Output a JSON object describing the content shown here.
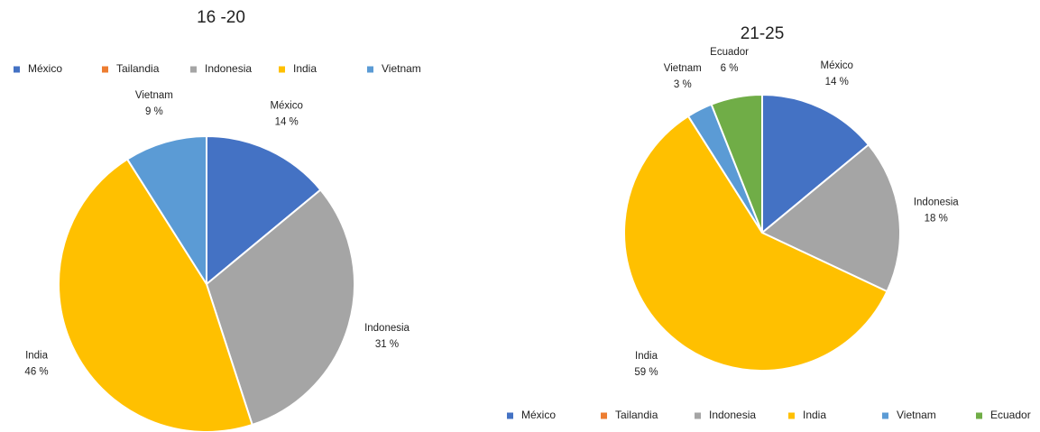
{
  "chart_data": [
    {
      "type": "pie",
      "title": "16 -20",
      "categories": [
        "México",
        "Tailandia",
        "Indonesia",
        "India",
        "Vietnam"
      ],
      "values": [
        14,
        0,
        31,
        46,
        9
      ],
      "value_labels": [
        "14 %",
        null,
        "31 %",
        "46 %",
        "9 %"
      ],
      "colors": [
        "#4472c4",
        "#ed7d31",
        "#a5a5a5",
        "#ffc000",
        "#5b9bd5"
      ],
      "legend": "top"
    },
    {
      "type": "pie",
      "title": "21-25",
      "categories": [
        "México",
        "Tailandia",
        "Indonesia",
        "India",
        "Vietnam",
        "Ecuador"
      ],
      "values": [
        14,
        0,
        18,
        59,
        3,
        6
      ],
      "value_labels": [
        "14 %",
        null,
        "18 %",
        "59 %",
        "3 %",
        "6 %"
      ],
      "colors": [
        "#4472c4",
        "#ed7d31",
        "#a5a5a5",
        "#ffc000",
        "#5b9bd5",
        "#70ad47"
      ],
      "legend": "bottom"
    }
  ]
}
